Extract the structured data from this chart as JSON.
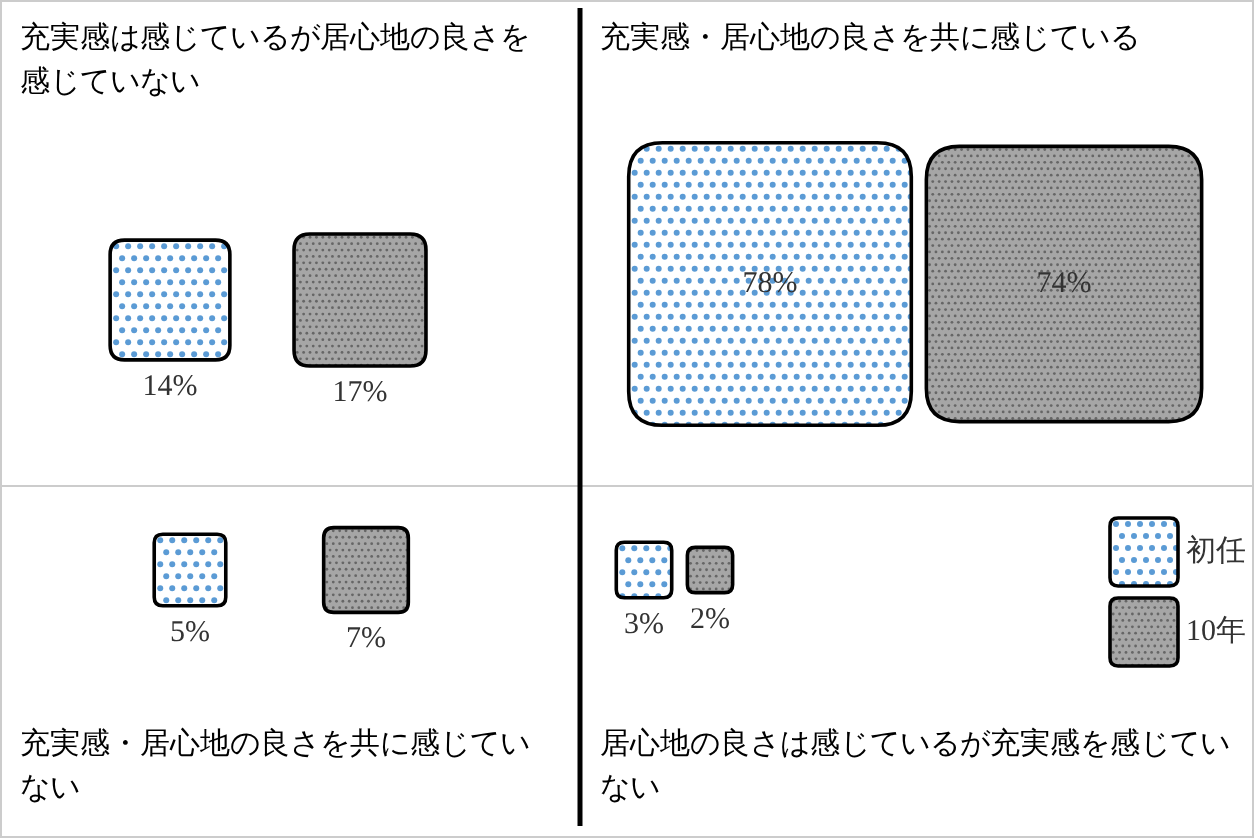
{
  "chart_data": {
    "type": "other",
    "categories": [
      "充実感は感じているが居心地の良さを感じていない",
      "充実感・居心地の良さを共に感じている",
      "充実感・居心地の良さを共に感じていない",
      "居心地の良さは感じているが充実感を感じていない"
    ],
    "series": [
      {
        "name": "初任",
        "color": "#5b9bd5",
        "values": [
          14,
          78,
          5,
          3
        ],
        "value_labels": [
          "14%",
          "78%",
          "5%",
          "3%"
        ]
      },
      {
        "name": "10年",
        "color": "#a6a6a6",
        "values": [
          17,
          74,
          7,
          2
        ],
        "value_labels": [
          "17%",
          "74%",
          "7%",
          "2%"
        ]
      }
    ],
    "legend": "bottom right"
  }
}
